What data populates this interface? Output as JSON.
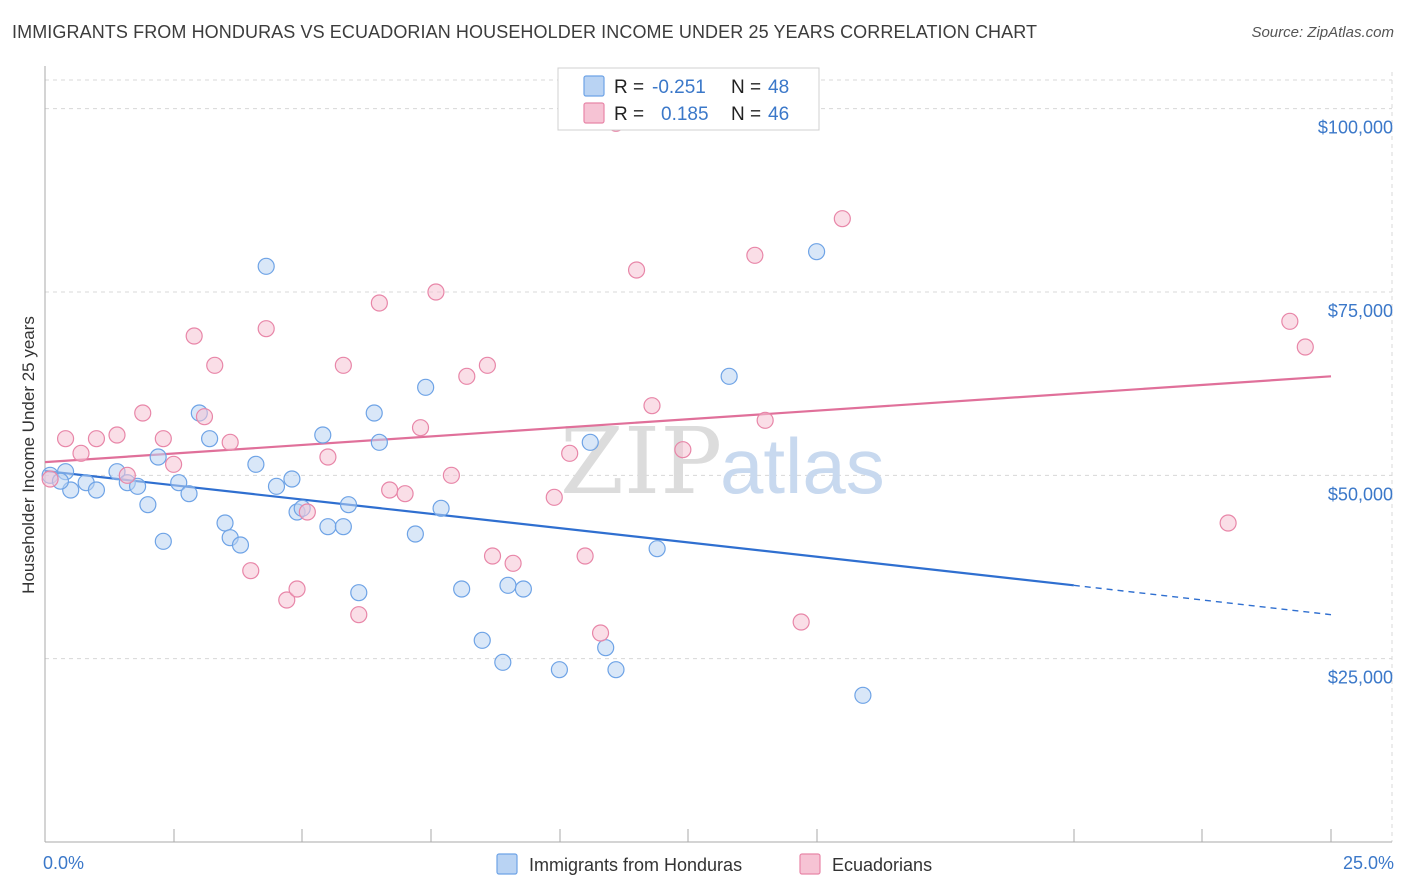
{
  "title": "IMMIGRANTS FROM HONDURAS VS ECUADORIAN HOUSEHOLDER INCOME UNDER 25 YEARS CORRELATION CHART",
  "source": "Source: ZipAtlas.com",
  "watermark": "ZIPatlas",
  "colors": {
    "blue": "#6ea3e6",
    "blue_fill": "#b9d3f3",
    "blue_line": "#2f6fd0",
    "pink": "#e886a8",
    "pink_fill": "#f6c3d4",
    "pink_line": "#e0709a",
    "axis_text": "#3b78c9",
    "grid": "#d8d8d8"
  },
  "legend": {
    "rows": [
      {
        "r_label": "R =",
        "r_value": "-0.251",
        "n_label": "N =",
        "n_value": "48",
        "series": "blue"
      },
      {
        "r_label": "R =",
        "r_value": "0.185",
        "n_label": "N =",
        "n_value": "46",
        "series": "pink"
      }
    ]
  },
  "bottom_legend": [
    "Immigrants from Honduras",
    "Ecuadorians"
  ],
  "chart_data": {
    "type": "scatter",
    "xlabel": "",
    "ylabel": "Householder Income Under 25 years",
    "xlim": [
      0,
      25
    ],
    "ylim": [
      0,
      105000
    ],
    "x_tick_labels": [
      "0.0%",
      "25.0%"
    ],
    "y_ticks": [
      25000,
      50000,
      75000,
      100000
    ],
    "y_tick_labels": [
      "$25,000",
      "$50,000",
      "$75,000",
      "$100,000"
    ],
    "grid": true,
    "legend_position": "top-center",
    "series": [
      {
        "name": "Immigrants from Honduras",
        "color": "blue",
        "trend": {
          "x0": 0,
          "y0": 50600,
          "x1": 20,
          "y1": 35000,
          "dash_to_x": 25,
          "dash_to_y": 31000
        },
        "points": [
          [
            0.1,
            50000
          ],
          [
            0.4,
            50500
          ],
          [
            0.5,
            48000
          ],
          [
            0.8,
            49000
          ],
          [
            1.0,
            48000
          ],
          [
            1.4,
            50500
          ],
          [
            1.6,
            49000
          ],
          [
            1.8,
            48500
          ],
          [
            2.0,
            46000
          ],
          [
            2.2,
            52500
          ],
          [
            2.3,
            41000
          ],
          [
            2.6,
            49000
          ],
          [
            2.8,
            47500
          ],
          [
            3.0,
            58500
          ],
          [
            3.2,
            55000
          ],
          [
            3.5,
            43500
          ],
          [
            3.6,
            41500
          ],
          [
            3.8,
            40500
          ],
          [
            4.1,
            51500
          ],
          [
            4.3,
            78500
          ],
          [
            4.5,
            48500
          ],
          [
            4.8,
            49500
          ],
          [
            4.9,
            45000
          ],
          [
            5.0,
            45500
          ],
          [
            5.4,
            55500
          ],
          [
            5.5,
            43000
          ],
          [
            5.8,
            43000
          ],
          [
            5.9,
            46000
          ],
          [
            6.1,
            34000
          ],
          [
            6.4,
            58500
          ],
          [
            6.5,
            54500
          ],
          [
            7.2,
            42000
          ],
          [
            7.4,
            62000
          ],
          [
            7.7,
            45500
          ],
          [
            8.1,
            34500
          ],
          [
            8.5,
            27500
          ],
          [
            8.9,
            24500
          ],
          [
            9.0,
            35000
          ],
          [
            9.3,
            34500
          ],
          [
            10.0,
            23500
          ],
          [
            10.6,
            54500
          ],
          [
            10.9,
            26500
          ],
          [
            11.1,
            23500
          ],
          [
            11.9,
            40000
          ],
          [
            13.3,
            63500
          ],
          [
            15.0,
            80500
          ],
          [
            15.9,
            20000
          ],
          [
            0.3,
            49200
          ]
        ]
      },
      {
        "name": "Ecuadorians",
        "color": "pink",
        "trend": {
          "x0": 0,
          "y0": 51800,
          "x1": 25,
          "y1": 63500
        },
        "points": [
          [
            0.1,
            49500
          ],
          [
            0.4,
            55000
          ],
          [
            0.7,
            53000
          ],
          [
            1.0,
            55000
          ],
          [
            1.4,
            55500
          ],
          [
            1.6,
            50000
          ],
          [
            1.9,
            58500
          ],
          [
            2.3,
            55000
          ],
          [
            2.5,
            51500
          ],
          [
            2.9,
            69000
          ],
          [
            3.1,
            58000
          ],
          [
            3.3,
            65000
          ],
          [
            3.6,
            54500
          ],
          [
            4.0,
            37000
          ],
          [
            4.3,
            70000
          ],
          [
            4.7,
            33000
          ],
          [
            4.9,
            34500
          ],
          [
            5.1,
            45000
          ],
          [
            5.5,
            52500
          ],
          [
            5.8,
            65000
          ],
          [
            6.1,
            31000
          ],
          [
            6.5,
            73500
          ],
          [
            6.7,
            48000
          ],
          [
            7.0,
            47500
          ],
          [
            7.3,
            56500
          ],
          [
            7.6,
            75000
          ],
          [
            7.9,
            50000
          ],
          [
            8.2,
            63500
          ],
          [
            8.6,
            65000
          ],
          [
            8.7,
            39000
          ],
          [
            9.1,
            38000
          ],
          [
            9.9,
            47000
          ],
          [
            10.2,
            53000
          ],
          [
            10.5,
            39000
          ],
          [
            10.8,
            28500
          ],
          [
            11.1,
            98000
          ],
          [
            11.5,
            78000
          ],
          [
            11.8,
            59500
          ],
          [
            12.4,
            53500
          ],
          [
            13.8,
            80000
          ],
          [
            14.0,
            57500
          ],
          [
            14.7,
            30000
          ],
          [
            15.5,
            85000
          ],
          [
            23.0,
            43500
          ],
          [
            24.2,
            71000
          ],
          [
            24.5,
            67500
          ]
        ]
      }
    ]
  }
}
